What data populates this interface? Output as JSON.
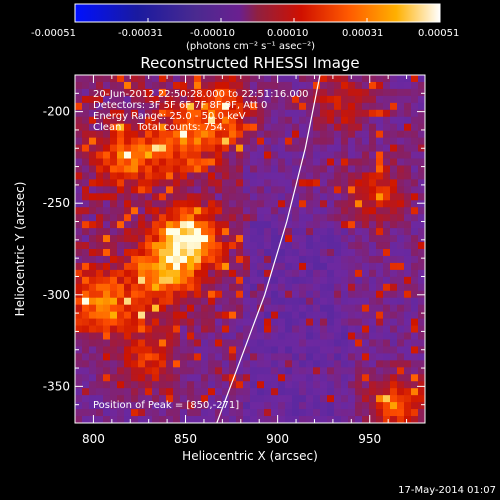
{
  "chart_data": {
    "type": "heatmap",
    "title": "Reconstructed RHESSI Image",
    "xlabel": "Heliocentric X (arcsec)",
    "ylabel": "Heliocentric Y (arcsec)",
    "xlim": [
      790,
      980
    ],
    "ylim": [
      -370,
      -180
    ],
    "x_ticks": [
      "800",
      "850",
      "900",
      "950"
    ],
    "y_ticks": [
      "-200",
      "-250",
      "-300",
      "-350"
    ],
    "colorbar": {
      "min": -0.00051,
      "max": 0.00051,
      "tick_labels": [
        "-0.00051",
        "-0.00031",
        "-0.00010",
        "0.00010",
        "0.00031",
        "0.00051"
      ],
      "unit_label": "(photons cm⁻² s⁻¹ asec⁻²)"
    },
    "annotations": {
      "time_range": "20-Jun-2012 22:50:28.000 to 22:51:16.000",
      "detectors": "Detectors: 3F 5F 6F 7F 8F 9F, Att 0",
      "energy": "Energy Range: 25.0 - 50.0 keV",
      "method": "Clean     Total counts: 754.",
      "peak": "Position of Peak = [850,-271]"
    },
    "peak_position": [
      850,
      -271
    ],
    "limb_curve": [
      [
        867,
        -370
      ],
      [
        880,
        -335
      ],
      [
        893,
        -300
      ],
      [
        905,
        -260
      ],
      [
        915,
        -220
      ],
      [
        923,
        -180
      ]
    ],
    "bright_sources": [
      {
        "x": 850,
        "y": -271,
        "amp": 1.0
      },
      {
        "x": 835,
        "y": -290,
        "amp": 0.55
      },
      {
        "x": 820,
        "y": -225,
        "amp": 0.6
      },
      {
        "x": 850,
        "y": -215,
        "amp": 0.55
      },
      {
        "x": 805,
        "y": -305,
        "amp": 0.7
      },
      {
        "x": 870,
        "y": -200,
        "amp": 0.5
      },
      {
        "x": 955,
        "y": -245,
        "amp": 0.45
      },
      {
        "x": 965,
        "y": -360,
        "amp": 0.6
      },
      {
        "x": 830,
        "y": -335,
        "amp": 0.5
      },
      {
        "x": 935,
        "y": -195,
        "amp": 0.4
      }
    ]
  },
  "footer": {
    "timestamp": "17-May-2014 01:07"
  }
}
